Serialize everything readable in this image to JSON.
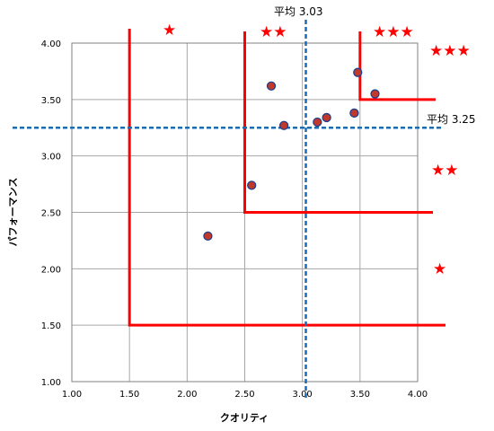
{
  "chart_data": {
    "type": "scatter",
    "title": "",
    "xlabel": "クオリティ",
    "ylabel": "パフォーマンス",
    "xlim": [
      1.0,
      4.0
    ],
    "ylim": [
      1.0,
      4.0
    ],
    "x_ticks": [
      "1.00",
      "1.50",
      "2.00",
      "2.50",
      "3.00",
      "3.50",
      "4.00"
    ],
    "y_ticks": [
      "1.00",
      "1.50",
      "2.00",
      "2.50",
      "3.00",
      "3.50",
      "4.00"
    ],
    "grid": true,
    "points": [
      {
        "x": 2.18,
        "y": 2.29
      },
      {
        "x": 2.56,
        "y": 2.74
      },
      {
        "x": 2.73,
        "y": 3.62
      },
      {
        "x": 2.84,
        "y": 3.27
      },
      {
        "x": 3.13,
        "y": 3.3
      },
      {
        "x": 3.21,
        "y": 3.34
      },
      {
        "x": 3.45,
        "y": 3.38
      },
      {
        "x": 3.48,
        "y": 3.74
      },
      {
        "x": 3.63,
        "y": 3.55
      }
    ],
    "mean_lines": [
      {
        "axis": "x",
        "value": 3.03,
        "label": "平均 3.03"
      },
      {
        "axis": "y",
        "value": 3.25,
        "label": "平均 3.25"
      }
    ],
    "zones": [
      {
        "corner_x": 1.5,
        "corner_y": 1.5
      },
      {
        "corner_x": 2.5,
        "corner_y": 2.5
      },
      {
        "corner_x": 3.5,
        "corner_y": 3.5
      }
    ],
    "star_labels": [
      "★",
      "★★",
      "★★★",
      "★★★",
      "★★",
      "★"
    ],
    "colors": {
      "points": "#c0392b",
      "point_edge": "#1f3f8f",
      "zones": "#ff0000",
      "mean_lines": "#1f6bb0",
      "grid": "#a6a6a6",
      "stars": "#ff0000"
    }
  }
}
